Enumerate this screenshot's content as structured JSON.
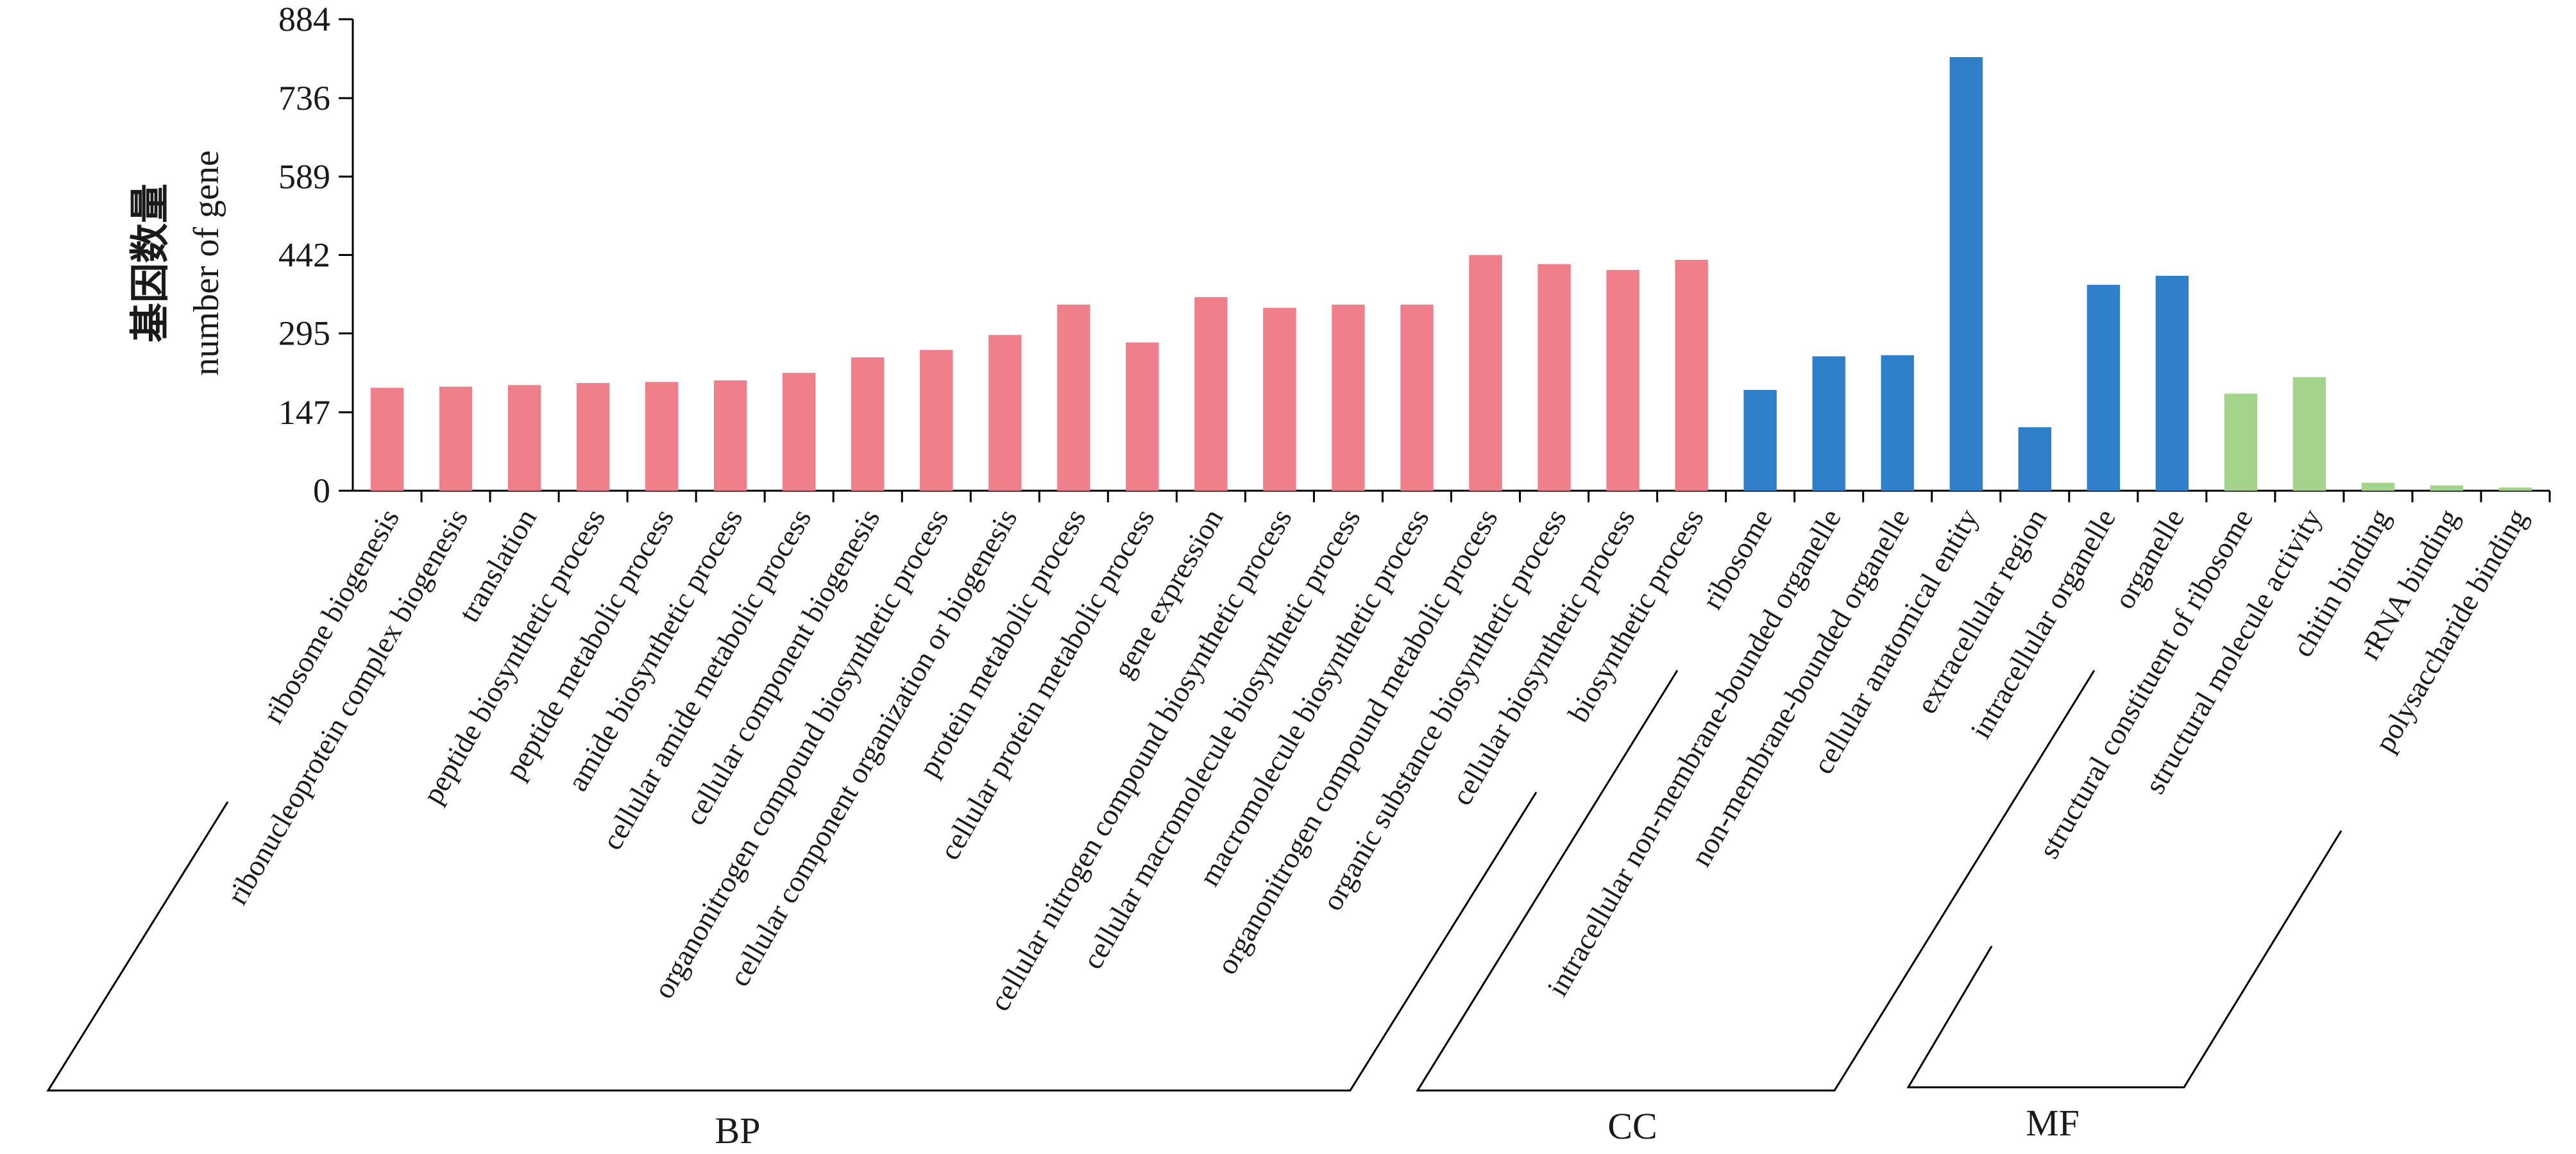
{
  "chart_data": {
    "type": "bar",
    "ylabel_cn": "基因数量",
    "ylabel": "number of gene",
    "ylim": [
      0,
      884
    ],
    "yticks": [
      "0",
      "147",
      "295",
      "442",
      "589",
      "736",
      "884"
    ],
    "grid": false,
    "legend": "none",
    "categories": [
      "ribosome biogenesis",
      "ribonucleoprotein complex biogenesis",
      "translation",
      "peptide biosynthetic process",
      "peptide metabolic process",
      "amide biosynthetic process",
      "cellular amide metabolic process",
      "cellular component biogenesis",
      "organonitrogen compound biosynthetic process",
      "cellular component organization or biogenesis",
      "protein metabolic process",
      "cellular protein metabolic process",
      "gene expression",
      "cellular nitrogen compound biosynthetic process",
      "cellular macromolecule biosynthetic process",
      "macromolecule biosynthetic process",
      "organonitrogen compound metabolic process",
      "organic substance biosynthetic process",
      "cellular biosynthetic process",
      "biosynthetic process",
      "ribosome",
      "intracellular non-membrane-bounded organelle",
      "non-membrane-bounded organelle",
      "cellular anatomical entity",
      "extracellular region",
      "intracellular organelle",
      "organelle",
      "structural constituent of ribosome",
      "structural molecule activity",
      "chitin binding",
      "rRNA binding",
      "polysaccharide binding"
    ],
    "values": [
      193,
      195,
      198,
      202,
      204,
      207,
      221,
      250,
      264,
      292,
      349,
      278,
      363,
      343,
      349,
      349,
      442,
      425,
      414,
      433,
      189,
      252,
      254,
      813,
      119,
      386,
      403,
      182,
      213,
      15,
      10,
      6
    ],
    "groups": [
      {
        "name": "BP",
        "start": 0,
        "end": 19,
        "color": "#ef7f8a"
      },
      {
        "name": "CC",
        "start": 20,
        "end": 26,
        "color": "#2f7ec9"
      },
      {
        "name": "MF",
        "start": 27,
        "end": 31,
        "color": "#a3d38a"
      }
    ]
  }
}
